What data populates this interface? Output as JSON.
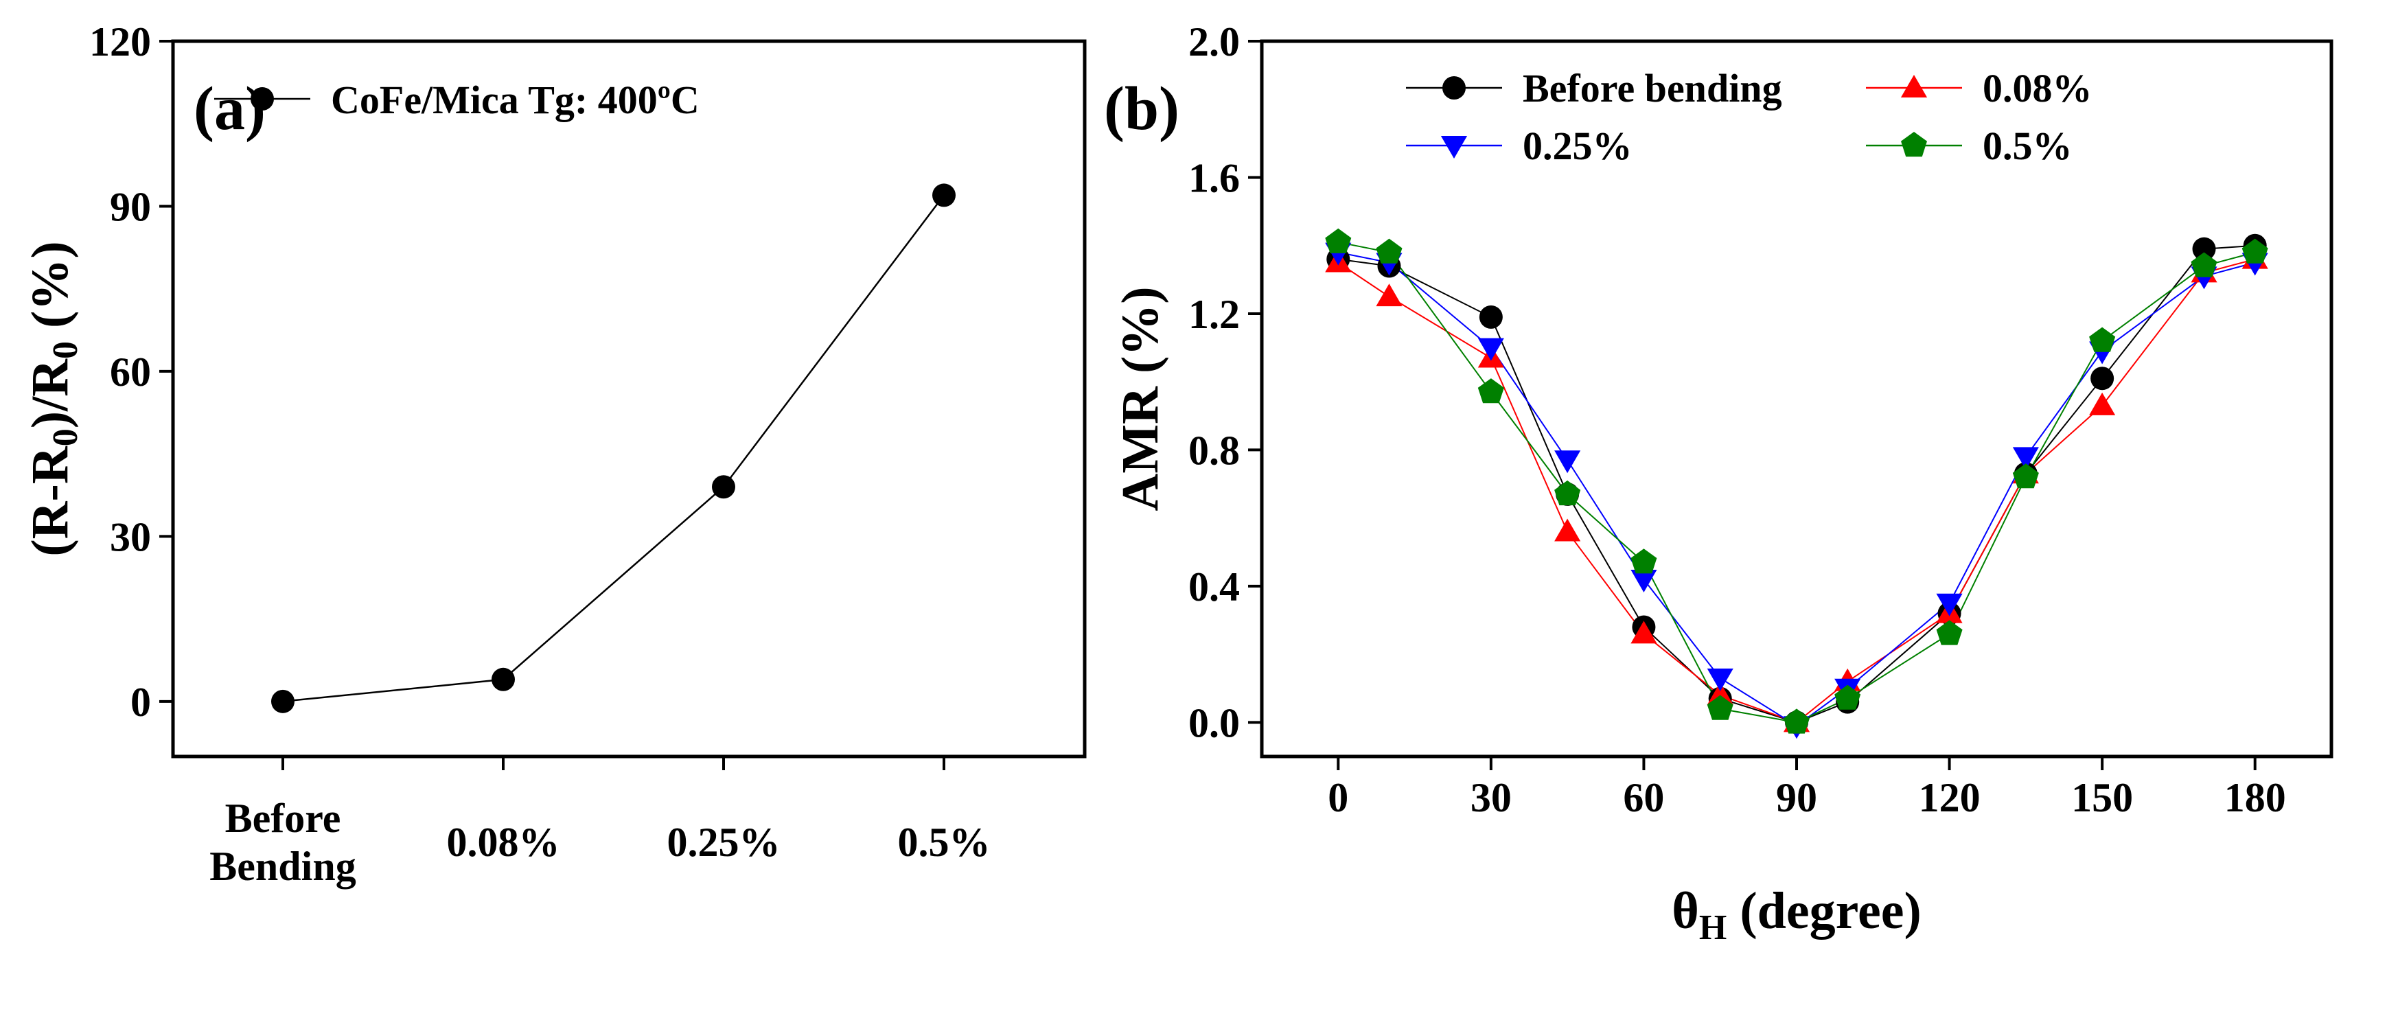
{
  "chart_data": [
    {
      "type": "line",
      "panel_label": "(a)",
      "categories": [
        "Before Bending",
        "0.08%",
        "0.25%",
        "0.5%"
      ],
      "category_lines": [
        [
          "Before",
          "Bending"
        ],
        [
          "0.08%"
        ],
        [
          "0.25%"
        ],
        [
          "0.5%"
        ]
      ],
      "series": [
        {
          "name": "CoFe/Mica Tg: 400ºC",
          "marker": "circle",
          "color": "#000000",
          "values": [
            0,
            4,
            39,
            92
          ]
        }
      ],
      "xlabel": "",
      "ylabel_parts": [
        "(R-R",
        "0",
        ")/R",
        "0",
        " (%)"
      ],
      "ylim": [
        -10,
        120
      ],
      "yticks": [
        0,
        30,
        60,
        90,
        120
      ],
      "ytick_labels": [
        "0",
        "30",
        "60",
        "90",
        "120"
      ],
      "legend_position": "top-left"
    },
    {
      "type": "line",
      "panel_label": "(b)",
      "x": [
        0,
        10,
        30,
        45,
        60,
        75,
        90,
        100,
        120,
        135,
        150,
        170,
        180
      ],
      "series": [
        {
          "name": "Before bending",
          "marker": "circle",
          "color": "#000000",
          "values": [
            1.36,
            1.34,
            1.19,
            0.67,
            0.28,
            0.07,
            0.0,
            0.06,
            0.32,
            0.73,
            1.01,
            1.39,
            1.4
          ]
        },
        {
          "name": "0.08%",
          "marker": "triangle-up",
          "color": "#ff0000",
          "values": [
            1.35,
            1.25,
            1.07,
            0.56,
            0.26,
            0.08,
            0.0,
            0.12,
            0.32,
            0.73,
            0.93,
            1.32,
            1.36
          ]
        },
        {
          "name": "0.25%",
          "marker": "triangle-down",
          "color": "#0000ff",
          "values": [
            1.38,
            1.35,
            1.1,
            0.77,
            0.42,
            0.13,
            -0.01,
            0.1,
            0.35,
            0.78,
            1.09,
            1.31,
            1.35
          ]
        },
        {
          "name": "0.5%",
          "marker": "pentagon",
          "color": "#008000",
          "values": [
            1.41,
            1.38,
            0.97,
            0.67,
            0.47,
            0.04,
            0.0,
            0.07,
            0.26,
            0.72,
            1.12,
            1.34,
            1.38
          ]
        }
      ],
      "xlabel_parts": [
        "θ",
        "H",
        " (degree)"
      ],
      "ylabel": "AMR (%)",
      "xlim": [
        -15,
        195
      ],
      "ylim": [
        -0.1,
        2.0
      ],
      "xticks": [
        0,
        30,
        60,
        90,
        120,
        150,
        180
      ],
      "xtick_labels": [
        "0",
        "30",
        "60",
        "90",
        "120",
        "150",
        "180"
      ],
      "yticks": [
        0.0,
        0.4,
        0.8,
        1.2,
        1.6,
        2.0
      ],
      "ytick_labels": [
        "0.0",
        "0.4",
        "0.8",
        "1.2",
        "1.6",
        "2.0"
      ],
      "legend_position": "top"
    }
  ]
}
